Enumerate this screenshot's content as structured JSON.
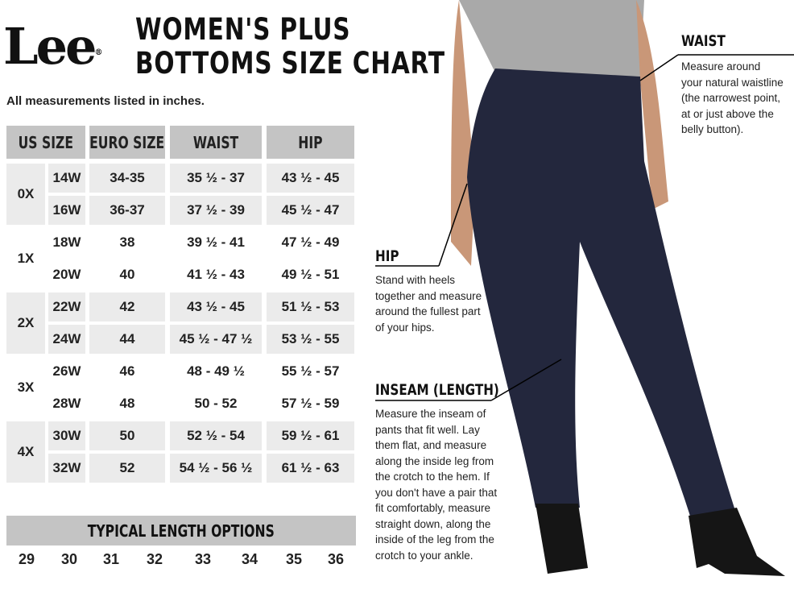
{
  "logo": "Lee",
  "title_line1": "WOMEN'S PLUS",
  "title_line2": "BOTTOMS SIZE CHART",
  "note": "All measurements listed in inches.",
  "headers": [
    "US SIZE",
    "EURO SIZE",
    "WAIST",
    "HIP"
  ],
  "groups": [
    {
      "label": "0X",
      "rows": [
        [
          "14W",
          "34-35",
          "35 ½ - 37",
          "43 ½ - 45"
        ],
        [
          "16W",
          "36-37",
          "37 ½ - 39",
          "45 ½ - 47"
        ]
      ]
    },
    {
      "label": "1X",
      "rows": [
        [
          "18W",
          "38",
          "39 ½ - 41",
          "47 ½ - 49"
        ],
        [
          "20W",
          "40",
          "41 ½ - 43",
          "49 ½ - 51"
        ]
      ]
    },
    {
      "label": "2X",
      "rows": [
        [
          "22W",
          "42",
          "43 ½ - 45",
          "51 ½ - 53"
        ],
        [
          "24W",
          "44",
          "45 ½ - 47 ½",
          "53 ½ - 55"
        ]
      ]
    },
    {
      "label": "3X",
      "rows": [
        [
          "26W",
          "46",
          "48 - 49 ½",
          "55 ½ - 57"
        ],
        [
          "28W",
          "48",
          "50 - 52",
          "57 ½ - 59"
        ]
      ]
    },
    {
      "label": "4X",
      "rows": [
        [
          "30W",
          "50",
          "52 ½ - 54",
          "59 ½ - 61"
        ],
        [
          "32W",
          "52",
          "54 ½ - 56 ½",
          "61 ½ - 63"
        ]
      ]
    }
  ],
  "length": {
    "title": "TYPICAL LENGTH OPTIONS",
    "values": [
      "29",
      "30",
      "31",
      "32",
      "33",
      "34",
      "35",
      "36"
    ]
  },
  "callouts": {
    "waist": {
      "title": "WAIST",
      "lines": [
        "Measure around",
        "your natural waistline",
        "(the narrowest point,",
        "at or just above the",
        "belly button)."
      ]
    },
    "hip": {
      "title": "HIP",
      "lines": [
        "Stand with heels",
        "together and measure",
        "around the fullest part",
        "of your hips."
      ]
    },
    "inseam": {
      "title": "INSEAM (LENGTH)",
      "lines": [
        "Measure the inseam of",
        "pants that fit well. Lay",
        "them flat, and measure",
        "along the inside leg from",
        "the crotch to the hem. If",
        "you don't have a pair that",
        "fit comfortably, measure",
        "straight down, along the",
        "inside of the leg from the",
        "crotch to your ankle."
      ]
    }
  },
  "colors": {
    "header": "#c4c4c4",
    "shaded": "#ebebeb",
    "denim": "#23273d"
  }
}
